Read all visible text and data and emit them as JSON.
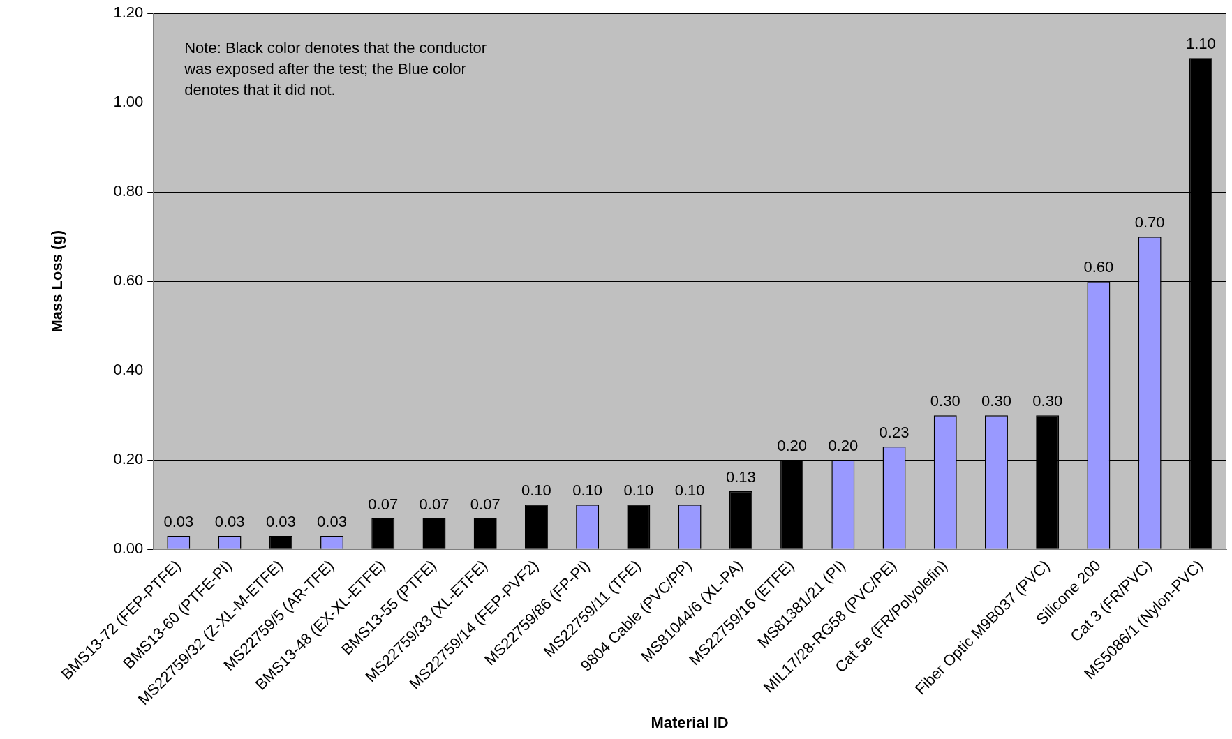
{
  "chart_data": {
    "type": "bar",
    "xlabel": "Material ID",
    "ylabel": "Mass Loss (g)",
    "categories": [
      "BMS13-72 (FEP-PTFE)",
      "BMS13-60 (PTFE-PI)",
      "MS22759/32 (Z-XL-M-ETFE)",
      "MS22759/5 (AR-TFE)",
      "BMS13-48 (EX-XL-ETFE)",
      "BMS13-55 (PTFE)",
      "MS22759/33 (XL-ETFE)",
      "MS22759/14 (FEP-PVF2)",
      "MS22759/86 (FP-PI)",
      "MS22759/11 (TFE)",
      "9804 Cable (PVC/PP)",
      "MS81044/6 (XL-PA)",
      "MS22759/16 (ETFE)",
      "MS81381/21 (PI)",
      "MIL17/28-RG58 (PVC/PE)",
      "Cat 5e (FR/Polyolefin)",
      null,
      "Fiber Optic M9B037 (PVC)",
      "Silicone 200",
      "Cat 3 (FR/PVC)",
      "MS5086/1 (Nylon-PVC)"
    ],
    "values": [
      0.03,
      0.03,
      0.03,
      0.03,
      0.07,
      0.07,
      0.07,
      0.1,
      0.1,
      0.1,
      0.1,
      0.13,
      0.2,
      0.2,
      0.23,
      0.3,
      0.3,
      0.3,
      0.6,
      0.7,
      1.1
    ],
    "value_labels": [
      "0.03",
      "0.03",
      "0.03",
      "0.03",
      "0.07",
      "0.07",
      "0.07",
      "0.10",
      "0.10",
      "0.10",
      "0.10",
      "0.13",
      "0.20",
      "0.20",
      "0.23",
      "0.30",
      "0.30",
      "0.30",
      "0.60",
      "0.70",
      "1.10"
    ],
    "colors": [
      "#9999ff",
      "#9999ff",
      "#000000",
      "#9999ff",
      "#000000",
      "#000000",
      "#000000",
      "#000000",
      "#9999ff",
      "#000000",
      "#9999ff",
      "#000000",
      "#000000",
      "#9999ff",
      "#9999ff",
      "#9999ff",
      "#9999ff",
      "#000000",
      "#9999ff",
      "#9999ff",
      "#000000"
    ],
    "ylim": [
      0,
      1.2
    ],
    "yticks": [
      {
        "value": 0,
        "label": "0.00"
      },
      {
        "value": 0.2,
        "label": "0.20"
      },
      {
        "value": 0.4,
        "label": "0.40"
      },
      {
        "value": 0.6,
        "label": "0.60"
      },
      {
        "value": 0.8,
        "label": "0.80"
      },
      {
        "value": 1,
        "label": "1.00"
      },
      {
        "value": 1.2,
        "label": "1.20"
      }
    ],
    "grid": "y",
    "legend": false,
    "annotations": [
      "Note: Black color denotes that the conductor was exposed after the test; the Blue color denotes that it did not."
    ]
  }
}
